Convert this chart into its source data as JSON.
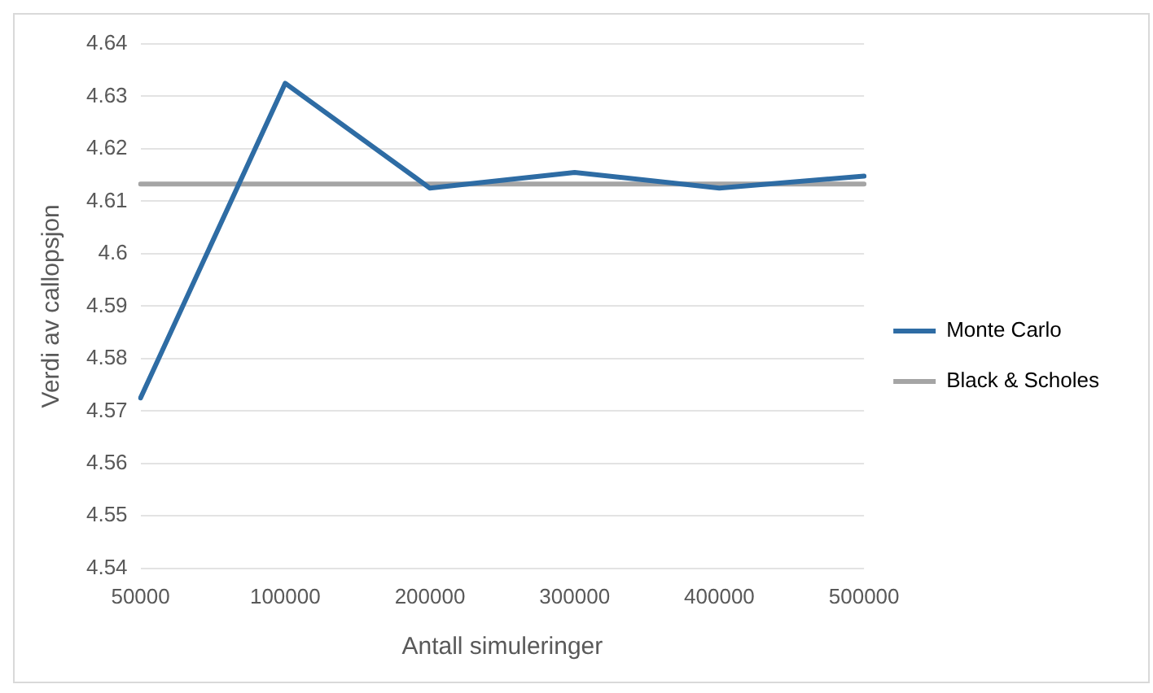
{
  "chart_data": {
    "type": "line",
    "xlabel": "Antall simuleringer",
    "ylabel": "Verdi av callopsjon",
    "categories": [
      "50000",
      "100000",
      "200000",
      "300000",
      "400000",
      "500000"
    ],
    "series": [
      {
        "name": "Monte Carlo",
        "color": "#2e6ca4",
        "values": [
          4.5725,
          4.6325,
          4.6125,
          4.6155,
          4.6125,
          4.6148
        ]
      },
      {
        "name": "Black & Scholes",
        "color": "#a5a5a5",
        "values": [
          4.6133,
          4.6133,
          4.6133,
          4.6133,
          4.6133,
          4.6133
        ]
      }
    ],
    "ylim": [
      4.54,
      4.64
    ],
    "yticks": [
      4.54,
      4.55,
      4.56,
      4.57,
      4.58,
      4.59,
      4.6,
      4.61,
      4.62,
      4.63,
      4.64
    ],
    "grid": "y",
    "legend": "right",
    "marker": "none",
    "line_style": "solid"
  }
}
